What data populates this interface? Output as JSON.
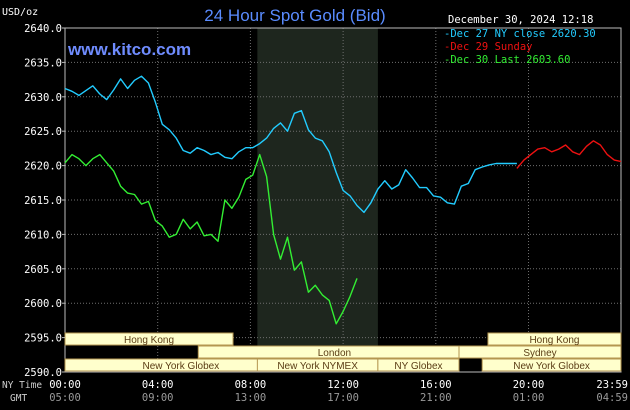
{
  "header": {
    "unit": "USD/oz",
    "title": "24 Hour Spot Gold (Bid)",
    "site": "www.kitco.com",
    "timestamp": "December 30, 2024 12:18"
  },
  "colors": {
    "background": "#000000",
    "plot_bg": "#000000",
    "grid": "#6f6f6f",
    "night_band": "#1e261e",
    "title": "#5a8cff",
    "site": "#6f8cff",
    "white": "#ffffff",
    "session_fill": "#ffffcc",
    "session_border": "#b49650",
    "session_text": "#5a3c14",
    "cyan": "#22ccff",
    "red": "#ee1111",
    "green": "#33ee33"
  },
  "legend": [
    {
      "label": "Dec 27 NY close 2620.30",
      "color": "#22ccff"
    },
    {
      "label": "Dec 29 Sunday",
      "color": "#ee1111"
    },
    {
      "label": "Dec 30 Last 2603.60",
      "color": "#33ee33"
    }
  ],
  "time_rows": {
    "ny_label": "NY Time",
    "gmt_label": "GMT",
    "ny_ticks": [
      "00:00",
      "04:00",
      "08:00",
      "12:00",
      "16:00",
      "20:00",
      "23:59"
    ],
    "gmt_ticks": [
      "05:00",
      "09:00",
      "13:00",
      "17:00",
      "21:00",
      "01:00",
      "04:59"
    ]
  },
  "sessions": [
    {
      "label": "Hong Kong",
      "start": 0,
      "end": 7.25,
      "row": 0
    },
    {
      "label": "London",
      "start": 5.75,
      "end": 17.5,
      "row": 1
    },
    {
      "label": "New York Globex",
      "start": 0,
      "end": 10.0,
      "row": 2
    },
    {
      "label": "New York NYMEX",
      "start": 8.3,
      "end": 13.5,
      "row": 2
    },
    {
      "label": "NY Globex",
      "start": 13.5,
      "end": 17.0,
      "row": 2
    },
    {
      "label": "Hong Kong",
      "start": 18.25,
      "end": 23.99,
      "row": 0
    },
    {
      "label": "Sydney",
      "start": 17.0,
      "end": 23.99,
      "row": 1
    },
    {
      "label": "New York Globex",
      "start": 18.0,
      "end": 23.99,
      "row": 2
    }
  ],
  "chart_data": {
    "type": "line",
    "title": "24 Hour Spot Gold (Bid)",
    "ylabel": "USD/oz",
    "xlabel": "NY Time",
    "ylim": [
      2590,
      2640
    ],
    "xlim": [
      0,
      23.99
    ],
    "yticks": [
      2590.0,
      2595.0,
      2600.0,
      2605.0,
      2610.0,
      2615.0,
      2620.0,
      2625.0,
      2630.0,
      2635.0,
      2640.0
    ],
    "ytick_labels": [
      "2590.0",
      "2595.0",
      "2600.0",
      "2605.0",
      "2610.0",
      "2615.0",
      "2620.0",
      "2625.0",
      "2630.0",
      "2635.0",
      "2640.0"
    ],
    "xticks": [
      0,
      4,
      8,
      12,
      16,
      20,
      23.99
    ],
    "xtick_labels": [
      "00:00",
      "04:00",
      "08:00",
      "12:00",
      "16:00",
      "20:00",
      "23:59"
    ],
    "shaded_region": [
      8.3,
      13.5
    ],
    "grid": true,
    "legend_position": "top-right",
    "series": [
      {
        "name": "Dec 27 NY close 2620.30",
        "color": "#22ccff",
        "points": [
          [
            0.0,
            2631.2
          ],
          [
            0.3,
            2630.8
          ],
          [
            0.6,
            2630.2
          ],
          [
            0.9,
            2630.9
          ],
          [
            1.2,
            2631.6
          ],
          [
            1.5,
            2630.4
          ],
          [
            1.8,
            2629.6
          ],
          [
            2.1,
            2631.0
          ],
          [
            2.4,
            2632.6
          ],
          [
            2.7,
            2631.2
          ],
          [
            3.0,
            2632.4
          ],
          [
            3.3,
            2633.0
          ],
          [
            3.6,
            2632.0
          ],
          [
            3.9,
            2629.2
          ],
          [
            4.2,
            2626.0
          ],
          [
            4.5,
            2625.2
          ],
          [
            4.8,
            2624.0
          ],
          [
            5.1,
            2622.2
          ],
          [
            5.4,
            2621.8
          ],
          [
            5.7,
            2622.6
          ],
          [
            6.0,
            2622.2
          ],
          [
            6.3,
            2621.6
          ],
          [
            6.6,
            2621.9
          ],
          [
            6.9,
            2621.2
          ],
          [
            7.2,
            2621.0
          ],
          [
            7.5,
            2622.0
          ],
          [
            7.8,
            2622.6
          ],
          [
            8.1,
            2622.6
          ],
          [
            8.4,
            2623.2
          ],
          [
            8.7,
            2624.0
          ],
          [
            9.0,
            2625.4
          ],
          [
            9.3,
            2626.2
          ],
          [
            9.6,
            2625.0
          ],
          [
            9.9,
            2627.6
          ],
          [
            10.2,
            2628.0
          ],
          [
            10.5,
            2625.2
          ],
          [
            10.8,
            2624.0
          ],
          [
            11.1,
            2623.6
          ],
          [
            11.4,
            2622.0
          ],
          [
            11.7,
            2619.0
          ],
          [
            12.0,
            2616.4
          ],
          [
            12.3,
            2615.6
          ],
          [
            12.6,
            2614.2
          ],
          [
            12.9,
            2613.2
          ],
          [
            13.2,
            2614.6
          ],
          [
            13.5,
            2616.6
          ],
          [
            13.8,
            2617.8
          ],
          [
            14.1,
            2616.6
          ],
          [
            14.4,
            2617.2
          ],
          [
            14.7,
            2619.4
          ],
          [
            15.0,
            2618.2
          ],
          [
            15.3,
            2616.8
          ],
          [
            15.6,
            2616.8
          ],
          [
            15.9,
            2615.6
          ],
          [
            16.2,
            2615.4
          ],
          [
            16.5,
            2614.6
          ],
          [
            16.8,
            2614.4
          ],
          [
            17.1,
            2617.0
          ],
          [
            17.4,
            2617.4
          ],
          [
            17.7,
            2619.4
          ],
          [
            18.0,
            2619.8
          ],
          [
            18.3,
            2620.1
          ],
          [
            18.6,
            2620.3
          ],
          [
            18.9,
            2620.3
          ],
          [
            19.2,
            2620.3
          ],
          [
            19.5,
            2620.3
          ]
        ]
      },
      {
        "name": "Dec 29 Sunday",
        "color": "#ee1111",
        "points": [
          [
            19.5,
            2619.6
          ],
          [
            19.8,
            2620.8
          ],
          [
            20.1,
            2621.6
          ],
          [
            20.4,
            2622.4
          ],
          [
            20.7,
            2622.6
          ],
          [
            21.0,
            2622.0
          ],
          [
            21.3,
            2622.4
          ],
          [
            21.6,
            2623.0
          ],
          [
            21.9,
            2622.0
          ],
          [
            22.2,
            2621.6
          ],
          [
            22.5,
            2622.8
          ],
          [
            22.8,
            2623.6
          ],
          [
            23.1,
            2623.0
          ],
          [
            23.4,
            2621.6
          ],
          [
            23.7,
            2620.8
          ],
          [
            23.99,
            2620.6
          ]
        ]
      },
      {
        "name": "Dec 30 Last 2603.60",
        "color": "#33ee33",
        "points": [
          [
            0.0,
            2620.4
          ],
          [
            0.3,
            2621.6
          ],
          [
            0.6,
            2621.0
          ],
          [
            0.9,
            2620.0
          ],
          [
            1.2,
            2621.0
          ],
          [
            1.5,
            2621.6
          ],
          [
            1.8,
            2620.4
          ],
          [
            2.1,
            2619.2
          ],
          [
            2.4,
            2617.0
          ],
          [
            2.7,
            2616.0
          ],
          [
            3.0,
            2615.8
          ],
          [
            3.3,
            2614.4
          ],
          [
            3.6,
            2614.8
          ],
          [
            3.9,
            2612.0
          ],
          [
            4.2,
            2611.2
          ],
          [
            4.5,
            2609.6
          ],
          [
            4.8,
            2610.0
          ],
          [
            5.1,
            2612.2
          ],
          [
            5.4,
            2610.8
          ],
          [
            5.7,
            2611.8
          ],
          [
            6.0,
            2609.8
          ],
          [
            6.3,
            2610.0
          ],
          [
            6.6,
            2609.0
          ],
          [
            6.9,
            2615.0
          ],
          [
            7.2,
            2613.8
          ],
          [
            7.5,
            2615.4
          ],
          [
            7.8,
            2618.0
          ],
          [
            8.1,
            2618.6
          ],
          [
            8.4,
            2621.6
          ],
          [
            8.7,
            2618.4
          ],
          [
            9.0,
            2610.0
          ],
          [
            9.3,
            2606.4
          ],
          [
            9.6,
            2609.6
          ],
          [
            9.9,
            2604.8
          ],
          [
            10.2,
            2606.0
          ],
          [
            10.5,
            2601.6
          ],
          [
            10.8,
            2602.6
          ],
          [
            11.1,
            2601.2
          ],
          [
            11.4,
            2600.4
          ],
          [
            11.7,
            2597.0
          ],
          [
            12.0,
            2598.8
          ],
          [
            12.3,
            2601.0
          ],
          [
            12.6,
            2603.6
          ]
        ]
      }
    ]
  }
}
